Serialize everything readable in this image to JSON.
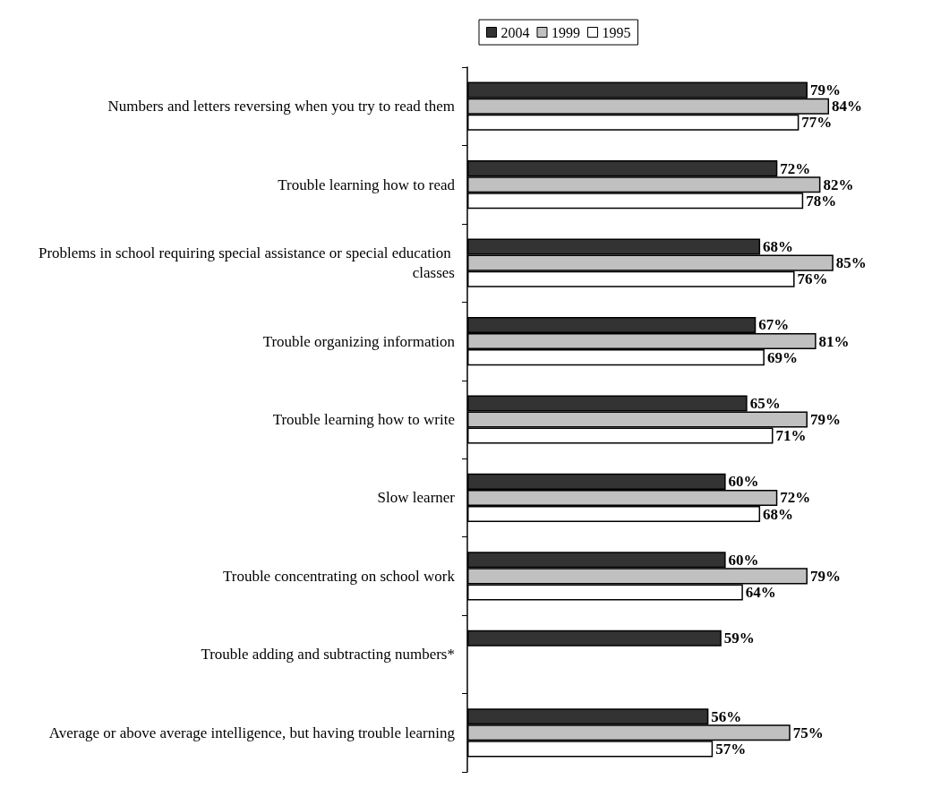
{
  "chart_data": {
    "type": "bar",
    "orientation": "horizontal",
    "categories": [
      "Numbers and letters reversing when you try to read them",
      "Trouble learning how to read",
      "Problems in school requiring special assistance or special education classes",
      "Trouble organizing information",
      "Trouble learning how to write",
      "Slow learner",
      "Trouble concentrating on school work",
      "Trouble adding and subtracting numbers*",
      "Average or above average intelligence, but having trouble learning"
    ],
    "series": [
      {
        "name": "2004",
        "color": "#333333",
        "values": [
          79,
          72,
          68,
          67,
          65,
          60,
          60,
          59,
          56
        ],
        "value_labels": [
          "79%",
          "72%",
          "68%",
          "67%",
          "65%",
          "60%",
          "60%",
          "59%",
          "56%"
        ]
      },
      {
        "name": "1999",
        "color": "#c0c0c0",
        "values": [
          84,
          82,
          85,
          81,
          79,
          72,
          79,
          null,
          75
        ],
        "value_labels": [
          "84%",
          "82%",
          "85%",
          "81%",
          "79%",
          "72%",
          "79%",
          null,
          "75%"
        ]
      },
      {
        "name": "1995",
        "color": "#ffffff",
        "values": [
          77,
          78,
          76,
          69,
          71,
          68,
          64,
          null,
          57
        ],
        "value_labels": [
          "77%",
          "78%",
          "76%",
          "69%",
          "71%",
          "68%",
          "64%",
          null,
          "57%"
        ]
      }
    ],
    "tick_labels": "y",
    "legend": "top",
    "grid": false
  }
}
